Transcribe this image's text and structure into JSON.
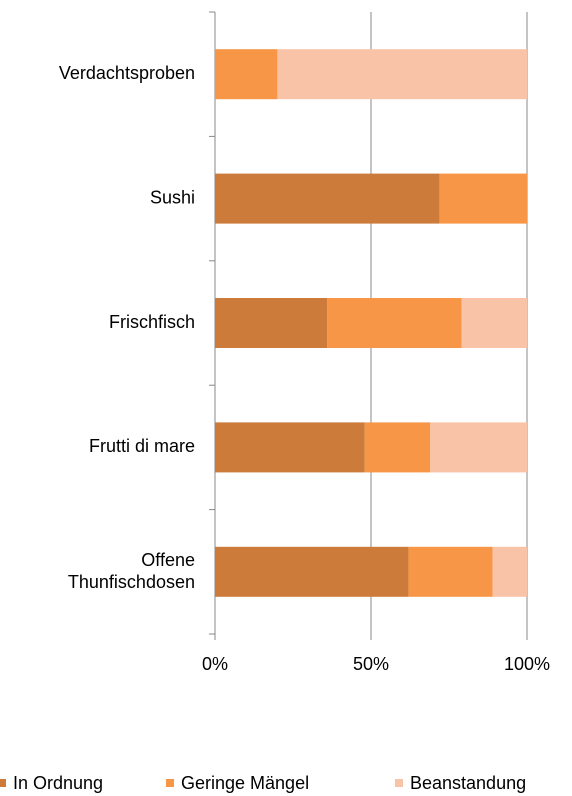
{
  "chart_data": {
    "type": "stacked_barh",
    "categories": [
      "Verdachtsproben",
      "Sushi",
      "Frischfisch",
      "Frutti di mare",
      "Offene\nThunfischdosen"
    ],
    "series": [
      {
        "name": "In Ordnung",
        "color": "#cd7b3a",
        "values": [
          0,
          72,
          36,
          48,
          62
        ]
      },
      {
        "name": "Geringe Mängel",
        "color": "#f79646",
        "values": [
          20,
          28,
          43,
          21,
          27
        ]
      },
      {
        "name": "Beanstandung",
        "color": "#f9c3a8",
        "values": [
          80,
          0,
          21,
          31,
          11
        ]
      }
    ],
    "xlim": [
      0,
      100
    ],
    "xticks": [
      {
        "value": 0,
        "label": "0%"
      },
      {
        "value": 50,
        "label": "50%"
      },
      {
        "value": 100,
        "label": "100%"
      }
    ],
    "grid": true
  }
}
